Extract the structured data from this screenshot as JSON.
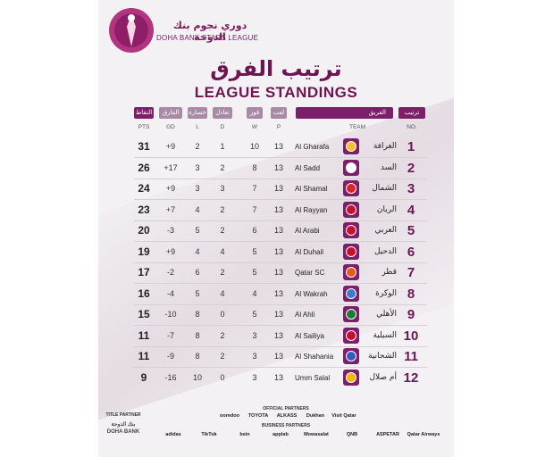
{
  "header": {
    "league_ar": "دوري نجوم بنك الدوحة",
    "league_en": "DOHA BANK STARS LEAGUE",
    "title_ar": "ترتيب الفرق",
    "title_en": "LEAGUE STANDINGS"
  },
  "columns": {
    "pts": {
      "ar": "النقاط",
      "en": "PTS"
    },
    "gd": {
      "ar": "الفارق",
      "en": "GD"
    },
    "l": {
      "ar": "خسارة",
      "en": "L"
    },
    "d": {
      "ar": "تعادل",
      "en": "D"
    },
    "w": {
      "ar": "فوز",
      "en": "W"
    },
    "p": {
      "ar": "لعب",
      "en": "P"
    },
    "team": {
      "ar": "الفريق",
      "en": "TEAM"
    },
    "no": {
      "ar": "ترتيب",
      "en": "NO."
    }
  },
  "standings": [
    {
      "pts": "31",
      "gd": "+9",
      "l": "2",
      "d": "1",
      "w": "10",
      "p": "13",
      "team_en": "Al Gharafa",
      "team_ar": "الغرافة",
      "rank": "1",
      "badge_color": "#f2c230"
    },
    {
      "pts": "26",
      "gd": "+17",
      "l": "3",
      "d": "2",
      "w": "8",
      "p": "13",
      "team_en": "Al Sadd",
      "team_ar": "السد",
      "rank": "2",
      "badge_color": "#ffffff"
    },
    {
      "pts": "24",
      "gd": "+9",
      "l": "3",
      "d": "3",
      "w": "7",
      "p": "13",
      "team_en": "Al Shamal",
      "team_ar": "الشمال",
      "rank": "3",
      "badge_color": "#d8232a"
    },
    {
      "pts": "23",
      "gd": "+7",
      "l": "4",
      "d": "2",
      "w": "7",
      "p": "13",
      "team_en": "Al Rayyan",
      "team_ar": "الريان",
      "rank": "4",
      "badge_color": "#c8102e"
    },
    {
      "pts": "20",
      "gd": "-3",
      "l": "5",
      "d": "2",
      "w": "6",
      "p": "13",
      "team_en": "Al Arabi",
      "team_ar": "العربي",
      "rank": "5",
      "badge_color": "#c8102e"
    },
    {
      "pts": "19",
      "gd": "+9",
      "l": "4",
      "d": "4",
      "w": "5",
      "p": "13",
      "team_en": "Al Duhail",
      "team_ar": "الدحيل",
      "rank": "6",
      "badge_color": "#c8102e"
    },
    {
      "pts": "17",
      "gd": "-2",
      "l": "6",
      "d": "2",
      "w": "5",
      "p": "13",
      "team_en": "Qatar SC",
      "team_ar": "قطر",
      "rank": "7",
      "badge_color": "#e85a1a"
    },
    {
      "pts": "16",
      "gd": "-4",
      "l": "5",
      "d": "4",
      "w": "4",
      "p": "13",
      "team_en": "Al Wakrah",
      "team_ar": "الوكرة",
      "rank": "8",
      "badge_color": "#3a7bd5"
    },
    {
      "pts": "15",
      "gd": "-10",
      "l": "8",
      "d": "0",
      "w": "5",
      "p": "13",
      "team_en": "Al Ahli",
      "team_ar": "الأهلي",
      "rank": "9",
      "badge_color": "#1f7a3a"
    },
    {
      "pts": "11",
      "gd": "-7",
      "l": "8",
      "d": "2",
      "w": "3",
      "p": "13",
      "team_en": "Al Sailiya",
      "team_ar": "السيلية",
      "rank": "10",
      "badge_color": "#c8102e"
    },
    {
      "pts": "11",
      "gd": "-9",
      "l": "8",
      "d": "2",
      "w": "3",
      "p": "13",
      "team_en": "Al Shahania",
      "team_ar": "الشحانية",
      "rank": "11",
      "badge_color": "#3a56c8"
    },
    {
      "pts": "9",
      "gd": "-16",
      "l": "10",
      "d": "0",
      "w": "3",
      "p": "13",
      "team_en": "Umm Salal",
      "team_ar": "أم صلال",
      "rank": "12",
      "badge_color": "#f2b705"
    }
  ],
  "footer": {
    "title_partner_label": "TITLE PARTNER",
    "title_partner_ar": "بنك الدوحة",
    "title_partner_en": "DOHA BANK",
    "official_partners_label": "OFFICIAL PARTNERS",
    "official_partners": [
      "ooredoo",
      "TOYOTA",
      "ALKASS",
      "Dukhan",
      "Visit Qatar"
    ],
    "business_partners_label": "BUSINESS PARTNERS",
    "business_partners": [
      "adidas",
      "TikTok",
      "bein",
      "applab",
      "Mowasalat",
      "QNB",
      "ASPETAR",
      "Qatar Airways"
    ]
  },
  "colors": {
    "brand": "#6d1553",
    "pill_dark": "#7a1f68",
    "pill_light": "#a98aa5"
  }
}
